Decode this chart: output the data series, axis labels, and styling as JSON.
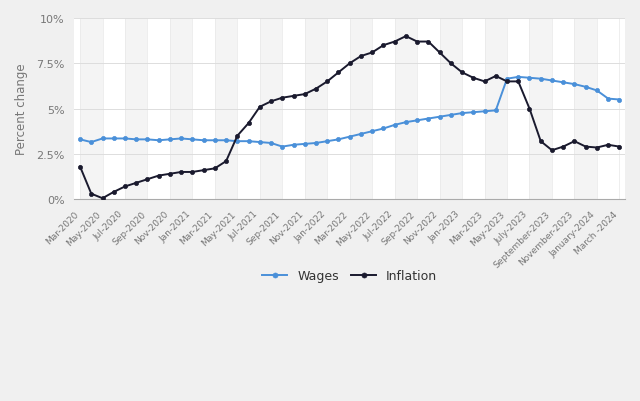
{
  "title": "",
  "ylabel": "Percent change",
  "background_color": "#f0f0f0",
  "plot_bg_color": "#ffffff",
  "wages_color": "#4a90d9",
  "inflation_color": "#1a1a2e",
  "legend_labels": [
    "Wages",
    "Inflation"
  ],
  "x_labels": [
    "Mar-2020",
    "May-2020",
    "Jul-2020",
    "Sep-2020",
    "Nov-2020",
    "Jan-2021",
    "Mar-2021",
    "May-2021",
    "Jul-2021",
    "Sep-2021",
    "Nov-2021",
    "Jan-2022",
    "Mar-2022",
    "May-2022",
    "Jul-2022",
    "Sep-2022",
    "Nov-2022",
    "Jan-2023",
    "Mar-2023",
    "May-2023",
    "July-2023",
    "September-2023",
    "November-2023",
    "January-2024",
    "March -2024"
  ],
  "wages_x": [
    0,
    1,
    2,
    3,
    4,
    5,
    6,
    7,
    8,
    9,
    10,
    11,
    12,
    13,
    14,
    15,
    16,
    17,
    18,
    19,
    20,
    21,
    22,
    23,
    24,
    25,
    26,
    27,
    28,
    29,
    30,
    31,
    32,
    33,
    34,
    35,
    36,
    37,
    38,
    39,
    40,
    41,
    42,
    43,
    44,
    45,
    46,
    47,
    48
  ],
  "wages": [
    3.3,
    3.15,
    3.35,
    3.35,
    3.35,
    3.3,
    3.3,
    3.25,
    3.3,
    3.35,
    3.3,
    3.25,
    3.25,
    3.25,
    3.2,
    3.2,
    3.15,
    3.1,
    2.9,
    3.0,
    3.05,
    3.1,
    3.2,
    3.3,
    3.45,
    3.6,
    3.75,
    3.9,
    4.1,
    4.25,
    4.35,
    4.45,
    4.55,
    4.65,
    4.75,
    4.8,
    4.85,
    4.9,
    6.65,
    6.75,
    6.7,
    6.65,
    6.55,
    6.45,
    6.35,
    6.2,
    6.0,
    5.55,
    5.5
  ],
  "inflation_x": [
    0,
    1,
    2,
    3,
    4,
    5,
    6,
    7,
    8,
    9,
    10,
    11,
    12,
    13,
    14,
    15,
    16,
    17,
    18,
    19,
    20,
    21,
    22,
    23,
    24,
    25,
    26,
    27,
    28,
    29,
    30,
    31,
    32,
    33,
    34,
    35,
    36,
    37,
    38,
    39,
    40,
    41,
    42,
    43,
    44,
    45,
    46,
    47,
    48
  ],
  "inflation": [
    1.8,
    0.3,
    0.05,
    0.4,
    0.7,
    0.9,
    1.1,
    1.3,
    1.4,
    1.5,
    1.5,
    1.6,
    1.7,
    2.1,
    3.5,
    4.2,
    5.1,
    5.4,
    5.6,
    5.7,
    5.8,
    6.1,
    6.5,
    7.0,
    7.5,
    7.9,
    8.1,
    8.5,
    8.7,
    9.0,
    8.7,
    8.7,
    8.1,
    7.5,
    7.0,
    6.7,
    6.5,
    6.8,
    6.5,
    6.5,
    5.0,
    3.2,
    2.7,
    2.9,
    3.2,
    2.9,
    2.85,
    3.0,
    2.9
  ],
  "ylim": [
    0,
    10
  ],
  "yticks": [
    0,
    2.5,
    5.0,
    7.5,
    10.0
  ],
  "ytick_labels": [
    "0%",
    "2.5%",
    "5%",
    "7.5%",
    "10%"
  ]
}
